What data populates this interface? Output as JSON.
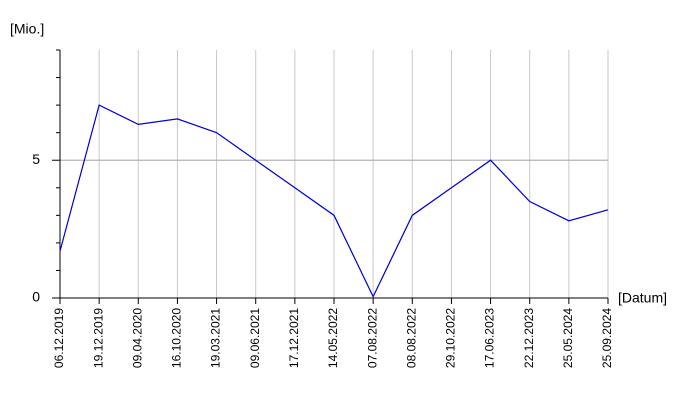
{
  "chart_data": {
    "type": "line",
    "y_label": "[Mio.]",
    "x_label": "[Datum]",
    "categories": [
      "06.12.2019",
      "19.12.2019",
      "09.04.2020",
      "16.10.2020",
      "19.03.2021",
      "09.06.2021",
      "17.12.2021",
      "14.05.2022",
      "07.08.2022",
      "08.08.2022",
      "29.10.2022",
      "17.06.2023",
      "22.12.2023",
      "25.05.2024",
      "25.09.2024"
    ],
    "values": [
      1.7,
      7.0,
      6.3,
      6.5,
      6.0,
      5.0,
      4.0,
      3.0,
      0.05,
      3.0,
      4.0,
      5.0,
      3.5,
      2.8,
      3.2
    ],
    "color": "#0000cc",
    "ylim": [
      0,
      9
    ],
    "yticks": [
      0,
      5
    ],
    "y_minor_ticks": [
      1,
      2,
      3,
      4,
      6,
      7,
      8,
      9
    ],
    "grid": true
  }
}
